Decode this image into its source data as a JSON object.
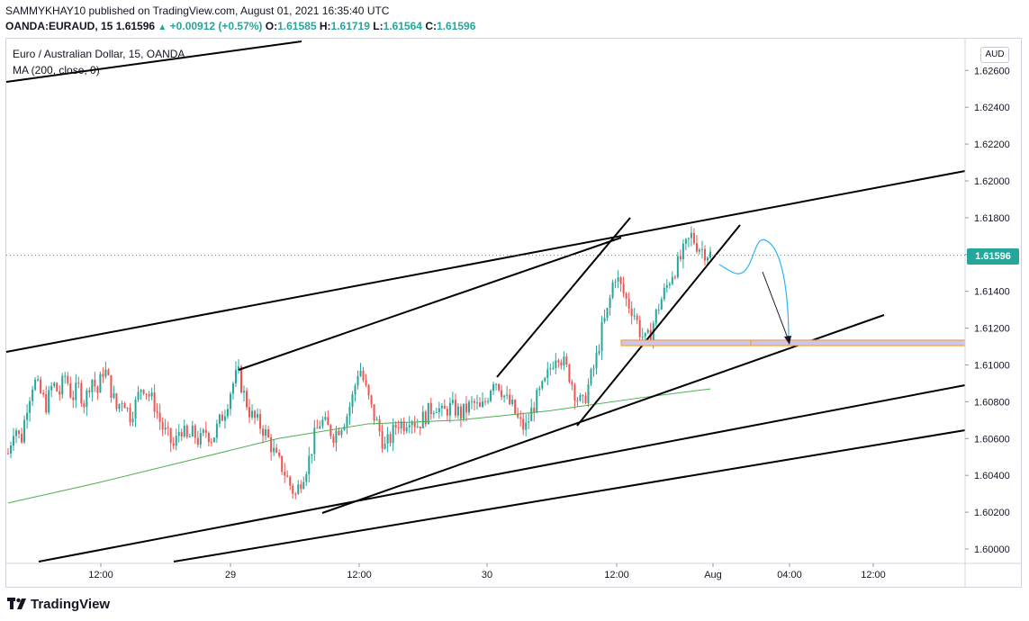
{
  "header": {
    "publisher": "SAMMYKHAY10 published on TradingView.com, August 01, 2021 16:35:40 UTC",
    "symbol": "OANDA:EURAUD, 15",
    "last": "1.61596",
    "change": "+0.00912 (+0.57%)",
    "o_label": "O:",
    "o_value": "1.61585",
    "h_label": "H:",
    "h_value": "1.61719",
    "l_label": "L:",
    "l_value": "1.61564",
    "c_label": "C:",
    "c_value": "1.61596"
  },
  "legend": {
    "instrument": "Euro / Australian Dollar, 15, OANDA",
    "indicator": "MA (200, close, 0)"
  },
  "currency": "AUD",
  "current_price_label": "1.61596",
  "footer": {
    "brand": "TradingView",
    "logo_icon": "tradingview-logo-icon"
  },
  "colors": {
    "up": "#26a69a",
    "down": "#ef5350",
    "ma": "#4caf50",
    "trendline": "#000000",
    "projection": "#29b6f6",
    "zone_fill": "#d1c4e9",
    "zone_border": "#ff9800"
  },
  "chart_data": {
    "type": "candlestick",
    "symbol": "OANDA:EURAUD",
    "timeframe": "15",
    "y_ticks": [
      "1.62600",
      "1.62400",
      "1.62200",
      "1.62000",
      "1.61800",
      "1.61600",
      "1.61400",
      "1.61200",
      "1.61000",
      "1.60800",
      "1.60600",
      "1.60400",
      "1.60200",
      "1.60000"
    ],
    "ylim": [
      1.599,
      1.6275
    ],
    "x_ticks": [
      "12:00",
      "29",
      "12:00",
      "30",
      "12:00",
      "Aug",
      "04:00",
      "12:00"
    ],
    "current_price": 1.61596,
    "ohlc_path": [
      1.6052,
      1.6068,
      1.6058,
      1.6079,
      1.6092,
      1.6085,
      1.6078,
      1.609,
      1.6084,
      1.6095,
      1.6082,
      1.6088,
      1.6079,
      1.6094,
      1.6085,
      1.6099,
      1.6088,
      1.6076,
      1.6083,
      1.6072,
      1.6079,
      1.609,
      1.6084,
      1.6078,
      1.6067,
      1.6061,
      1.6055,
      1.6067,
      1.6059,
      1.6063,
      1.6058,
      1.6064,
      1.606,
      1.6068,
      1.6076,
      1.6088,
      1.6096,
      1.6083,
      1.6073,
      1.6069,
      1.6065,
      1.6058,
      1.6049,
      1.6044,
      1.6036,
      1.6029,
      1.6039,
      1.6047,
      1.6061,
      1.607,
      1.6066,
      1.6062,
      1.6067,
      1.6072,
      1.6083,
      1.61,
      1.6087,
      1.6075,
      1.6066,
      1.6055,
      1.6061,
      1.6069,
      1.6068,
      1.6073,
      1.6067,
      1.6071,
      1.6075,
      1.6079,
      1.6073,
      1.6077,
      1.6076,
      1.6073,
      1.6077,
      1.6079,
      1.6075,
      1.6082,
      1.6093,
      1.6089,
      1.6081,
      1.6077,
      1.6069,
      1.6065,
      1.6075,
      1.6083,
      1.6089,
      1.6099,
      1.6108,
      1.6101,
      1.6094,
      1.6083,
      1.6078,
      1.609,
      1.6101,
      1.6119,
      1.613,
      1.615,
      1.6142,
      1.6134,
      1.6129,
      1.6118,
      1.6112,
      1.6122,
      1.6133,
      1.6141,
      1.615,
      1.6155,
      1.6163,
      1.617,
      1.6165,
      1.6162,
      1.616
    ],
    "ma200": [
      [
        0,
        1.6025
      ],
      [
        100,
        1.6036
      ],
      [
        200,
        1.6048
      ],
      [
        300,
        1.606
      ],
      [
        400,
        1.6068
      ],
      [
        500,
        1.607
      ],
      [
        600,
        1.6075
      ],
      [
        700,
        1.6082
      ],
      [
        780,
        1.6087
      ]
    ],
    "annotations": {
      "trendlines": 8,
      "support_zone": [
        1.61105,
        1.61135
      ],
      "projection": "pullback then drop to support zone"
    }
  }
}
